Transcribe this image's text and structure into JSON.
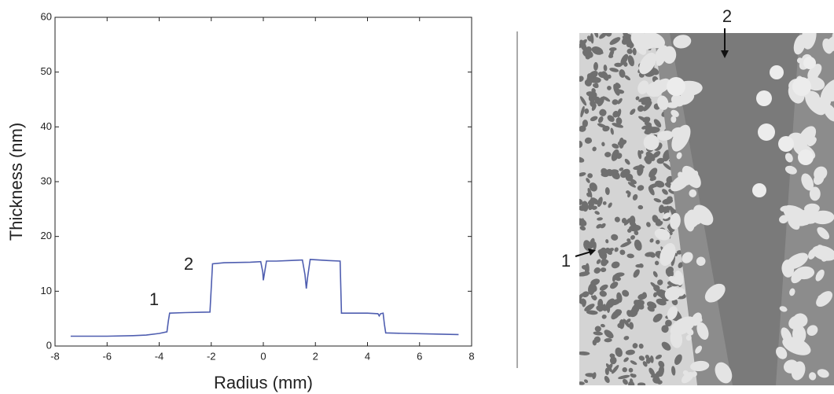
{
  "chart_data": {
    "type": "line",
    "xlabel": "Radius (mm)",
    "ylabel": "Thickness (nm)",
    "x": [
      -7.4,
      -6,
      -5,
      -4.5,
      -4,
      -3.7,
      -3.65,
      -3.6,
      -3,
      -2.05,
      -1.95,
      -1.5,
      -0.5,
      -0.1,
      -0.02,
      0,
      0.05,
      0.12,
      0.5,
      1.0,
      1.5,
      1.6,
      1.65,
      1.7,
      1.8,
      2.5,
      2.95,
      3.0,
      3.5,
      4.0,
      4.4,
      4.45,
      4.5,
      4.6,
      4.65,
      4.7,
      5.5,
      6.5,
      7.5
    ],
    "values": [
      1.8,
      1.8,
      1.9,
      2.0,
      2.3,
      2.6,
      4.5,
      6.0,
      6.1,
      6.2,
      15.0,
      15.2,
      15.3,
      15.4,
      13.5,
      12.0,
      13.5,
      15.5,
      15.5,
      15.6,
      15.7,
      13.0,
      10.5,
      12.5,
      15.8,
      15.6,
      15.5,
      6.0,
      6.0,
      6.0,
      5.9,
      5.5,
      5.9,
      6.0,
      4.0,
      2.4,
      2.3,
      2.2,
      2.1
    ],
    "color": "#4f5eb0",
    "xlim": [
      -8,
      8
    ],
    "xticks": [
      -8,
      -6,
      -4,
      -2,
      0,
      2,
      4,
      6,
      8
    ],
    "ylim": [
      0,
      60
    ],
    "yticks": [
      0,
      10,
      20,
      30,
      40,
      50,
      60
    ],
    "annotations": [
      "1",
      "2"
    ]
  },
  "image": {
    "labels": [
      "1",
      "2"
    ]
  }
}
